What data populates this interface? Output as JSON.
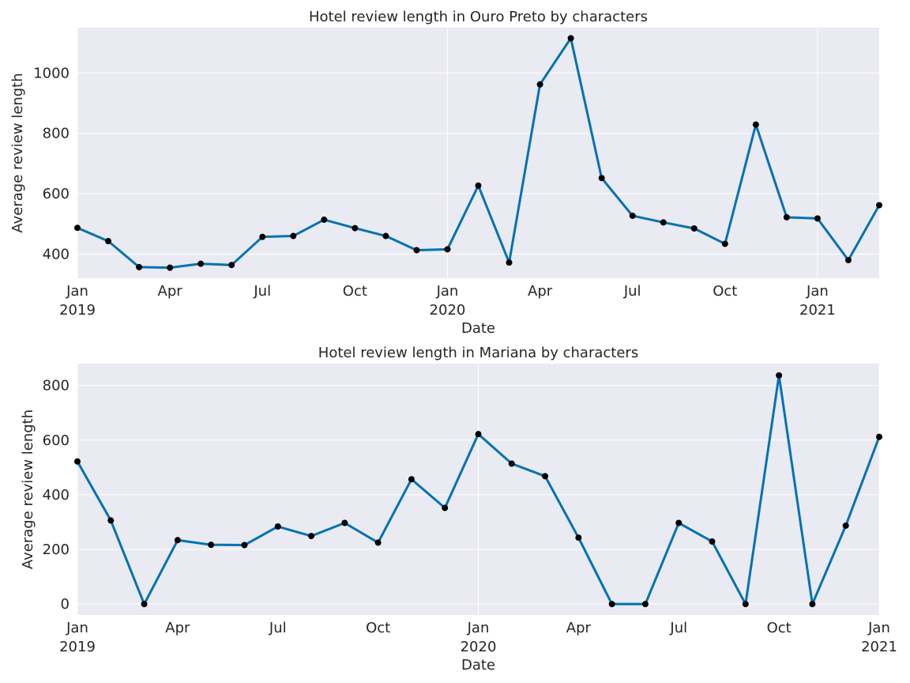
{
  "chart_data": [
    {
      "type": "line",
      "title": "Hotel review length in Ouro Preto by characters",
      "xlabel": "Date",
      "ylabel": "Average review length",
      "ylim": [
        320,
        1150
      ],
      "xlim": [
        "2019-01",
        "2021-03"
      ],
      "grid": true,
      "line_color": "#0072b2",
      "marker_color": "#000000",
      "yticks": [
        400,
        600,
        800,
        1000
      ],
      "xticks": [
        {
          "month": "2019-01",
          "label": "Jan",
          "year": "2019"
        },
        {
          "month": "2019-04",
          "label": "Apr",
          "year": ""
        },
        {
          "month": "2019-07",
          "label": "Jul",
          "year": ""
        },
        {
          "month": "2019-10",
          "label": "Oct",
          "year": ""
        },
        {
          "month": "2020-01",
          "label": "Jan",
          "year": "2020"
        },
        {
          "month": "2020-04",
          "label": "Apr",
          "year": ""
        },
        {
          "month": "2020-07",
          "label": "Jul",
          "year": ""
        },
        {
          "month": "2020-10",
          "label": "Oct",
          "year": ""
        },
        {
          "month": "2021-01",
          "label": "Jan",
          "year": "2021"
        }
      ],
      "x": [
        "2019-01",
        "2019-02",
        "2019-03",
        "2019-04",
        "2019-05",
        "2019-06",
        "2019-07",
        "2019-08",
        "2019-09",
        "2019-10",
        "2019-11",
        "2019-12",
        "2020-01",
        "2020-02",
        "2020-03",
        "2020-04",
        "2020-05",
        "2020-06",
        "2020-07",
        "2020-08",
        "2020-09",
        "2020-10",
        "2020-11",
        "2020-12",
        "2021-01",
        "2021-02",
        "2021-03"
      ],
      "series": [
        {
          "values": [
            487,
            443,
            357,
            355,
            368,
            364,
            457,
            460,
            514,
            486,
            460,
            413,
            416,
            627,
            372,
            962,
            1115,
            652,
            527,
            505,
            485,
            434,
            829,
            522,
            518,
            380,
            562
          ]
        }
      ]
    },
    {
      "type": "line",
      "title": "Hotel review length in Mariana by characters",
      "xlabel": "Date",
      "ylabel": "Average review length",
      "ylim": [
        -40,
        880
      ],
      "xlim": [
        "2019-01",
        "2021-01"
      ],
      "grid": true,
      "line_color": "#0072b2",
      "marker_color": "#000000",
      "yticks": [
        0,
        200,
        400,
        600,
        800
      ],
      "xticks": [
        {
          "month": "2019-01",
          "label": "Jan",
          "year": "2019"
        },
        {
          "month": "2019-04",
          "label": "Apr",
          "year": ""
        },
        {
          "month": "2019-07",
          "label": "Jul",
          "year": ""
        },
        {
          "month": "2019-10",
          "label": "Oct",
          "year": ""
        },
        {
          "month": "2020-01",
          "label": "Jan",
          "year": "2020"
        },
        {
          "month": "2020-04",
          "label": "Apr",
          "year": ""
        },
        {
          "month": "2020-07",
          "label": "Jul",
          "year": ""
        },
        {
          "month": "2020-10",
          "label": "Oct",
          "year": ""
        },
        {
          "month": "2021-01",
          "label": "Jan",
          "year": "2021"
        }
      ],
      "x": [
        "2019-01",
        "2019-02",
        "2019-03",
        "2019-04",
        "2019-05",
        "2019-06",
        "2019-07",
        "2019-08",
        "2019-09",
        "2019-10",
        "2019-11",
        "2019-12",
        "2020-01",
        "2020-02",
        "2020-03",
        "2020-04",
        "2020-05",
        "2020-06",
        "2020-07",
        "2020-08",
        "2020-09",
        "2020-10",
        "2020-11",
        "2020-12",
        "2021-01"
      ],
      "series": [
        {
          "values": [
            522,
            306,
            0,
            234,
            217,
            216,
            284,
            249,
            297,
            225,
            457,
            352,
            622,
            514,
            468,
            243,
            0,
            0,
            297,
            229,
            0,
            837,
            0,
            287,
            612
          ]
        }
      ]
    }
  ]
}
